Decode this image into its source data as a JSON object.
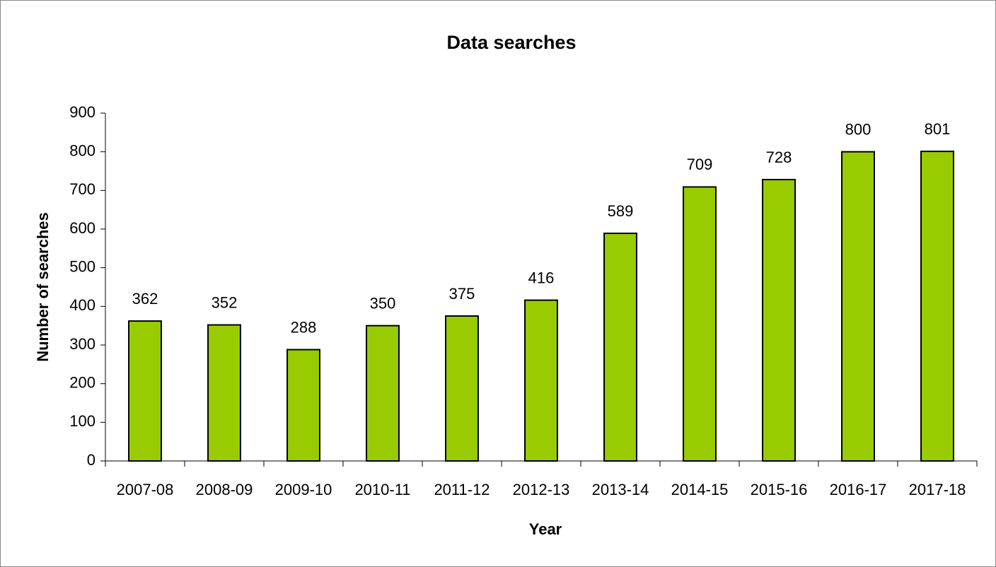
{
  "chart_data": {
    "type": "bar",
    "title": "Data searches",
    "xlabel": "Year",
    "ylabel": "Number of searches",
    "categories": [
      "2007-08",
      "2008-09",
      "2009-10",
      "2010-11",
      "2011-12",
      "2012-13",
      "2013-14",
      "2014-15",
      "2015-16",
      "2016-17",
      "2017-18"
    ],
    "values": [
      362,
      352,
      288,
      350,
      375,
      416,
      589,
      709,
      728,
      800,
      801
    ],
    "color": "#99cc00",
    "ylim": [
      0,
      900
    ],
    "yticks": [
      0,
      100,
      200,
      300,
      400,
      500,
      600,
      700,
      800,
      900
    ],
    "grid": false
  }
}
